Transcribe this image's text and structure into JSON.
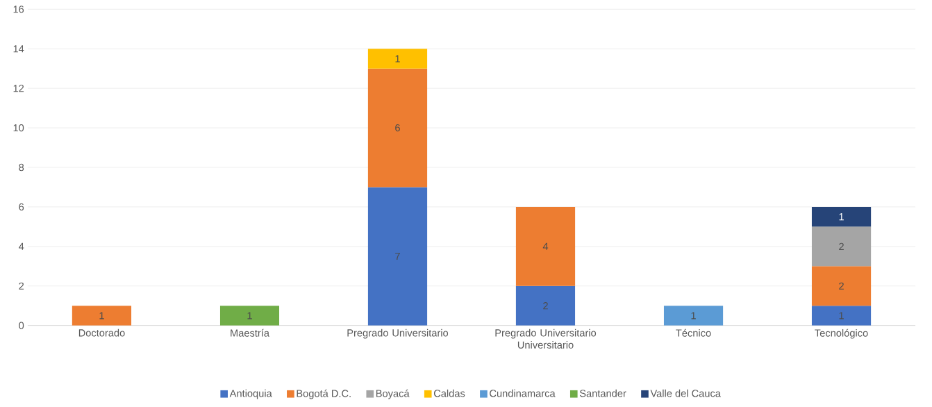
{
  "chart_data": {
    "type": "bar",
    "stacked": true,
    "categories": [
      "Doctorado",
      "Maestría",
      "Pregrado Universitario",
      "Pregrado Universitario Universitario",
      "Técnico",
      "Tecnológico"
    ],
    "series": [
      {
        "name": "Antioquia",
        "color": "#4472c4",
        "values": [
          null,
          null,
          7,
          2,
          null,
          1
        ]
      },
      {
        "name": "Bogotá D.C.",
        "color": "#ed7d31",
        "values": [
          1,
          null,
          6,
          4,
          null,
          2
        ]
      },
      {
        "name": "Boyacá",
        "color": "#a5a5a5",
        "values": [
          null,
          null,
          null,
          null,
          null,
          2
        ]
      },
      {
        "name": "Caldas",
        "color": "#ffc000",
        "values": [
          null,
          null,
          1,
          null,
          null,
          null
        ]
      },
      {
        "name": "Cundinamarca",
        "color": "#5b9bd5",
        "values": [
          null,
          null,
          null,
          null,
          1,
          null
        ]
      },
      {
        "name": "Santander",
        "color": "#70ad47",
        "values": [
          null,
          1,
          null,
          null,
          null,
          null
        ]
      },
      {
        "name": "Valle del Cauca",
        "color": "#264478",
        "values": [
          null,
          null,
          null,
          null,
          null,
          1
        ]
      }
    ],
    "ylim": [
      0,
      16
    ],
    "yticks": [
      0,
      2,
      4,
      6,
      8,
      10,
      12,
      14,
      16
    ],
    "grid": "y",
    "legend": "bottom",
    "data_labels": true
  }
}
